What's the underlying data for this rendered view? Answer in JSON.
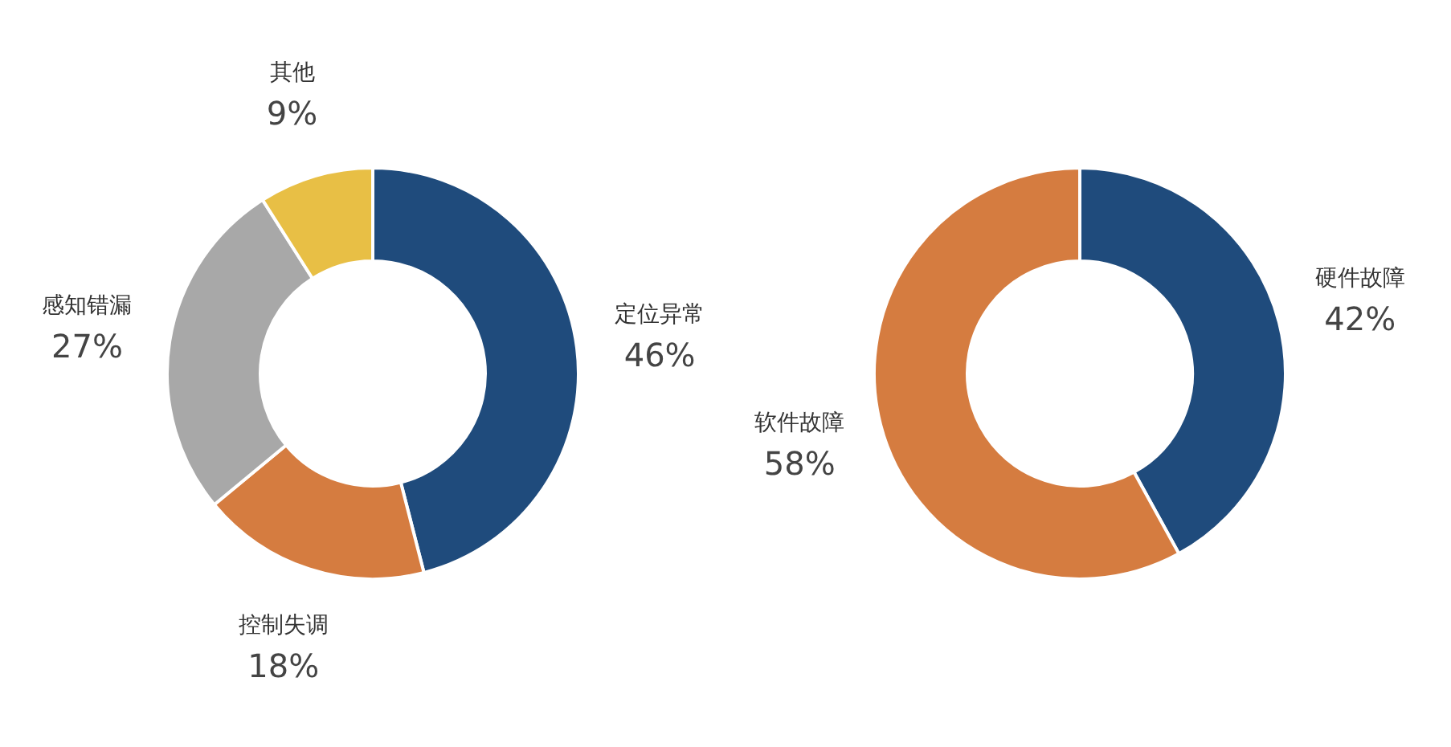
{
  "chart_data": [
    {
      "type": "donut",
      "categories": [
        "定位异常",
        "控制失调",
        "感知错漏",
        "其他"
      ],
      "values": [
        46,
        18,
        27,
        9
      ],
      "value_labels": [
        "46%",
        "18%",
        "27%",
        "9%"
      ],
      "colors": [
        "#1f4b7c",
        "#d57c40",
        "#a8a8a8",
        "#e8bf45"
      ],
      "legend": false
    },
    {
      "type": "donut",
      "categories": [
        "硬件故障",
        "软件故障"
      ],
      "values": [
        42,
        58
      ],
      "value_labels": [
        "42%",
        "58%"
      ],
      "colors": [
        "#1f4b7c",
        "#d57c40"
      ],
      "legend": false
    }
  ]
}
